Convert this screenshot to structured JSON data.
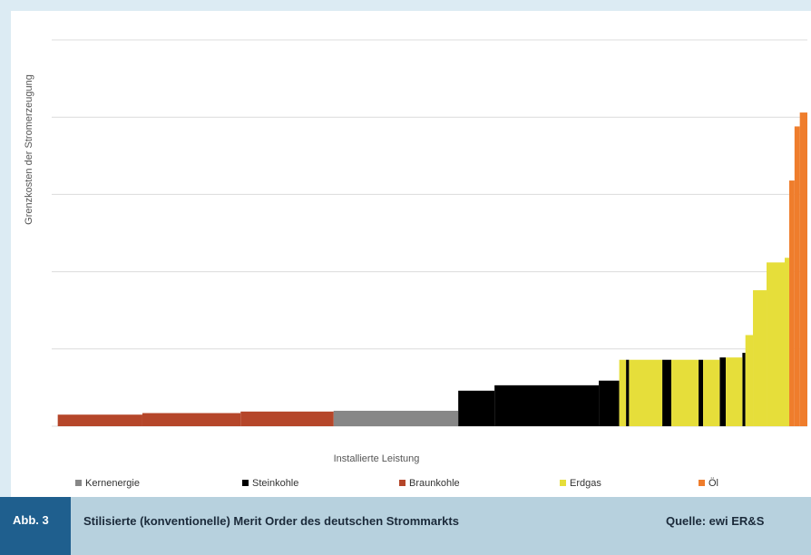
{
  "chart_data": {
    "type": "step-bar",
    "y_label": "Grenzkosten der Stromerzeugung",
    "x_label": "Installierte Leistung",
    "xlim": [
      0,
      100
    ],
    "ylim": [
      0,
      5
    ],
    "yticks": [
      0,
      1,
      2,
      3,
      4,
      5
    ],
    "grid": true,
    "series": [
      {
        "name": "Kernenergie",
        "color": "#878787",
        "x0": [
          37.3
        ],
        "x1": [
          53.8
        ],
        "values": [
          0.2
        ]
      },
      {
        "name": "Steinkohle",
        "color": "#000000",
        "x0": [
          53.8,
          58.6,
          72.4,
          76.0,
          80.8,
          85.6,
          88.4,
          91.4
        ],
        "x1": [
          58.6,
          72.4,
          75.1,
          76.4,
          82.0,
          86.2,
          89.2,
          91.8
        ],
        "values": [
          0.46,
          0.53,
          0.59,
          0.86,
          0.86,
          0.86,
          0.89,
          0.95
        ]
      },
      {
        "name": "Braunkohle",
        "color": "#b5462a",
        "x0": [
          0.8,
          12,
          25
        ],
        "x1": [
          12,
          25,
          37.3
        ],
        "values": [
          0.15,
          0.17,
          0.19
        ]
      },
      {
        "name": "Erdgas",
        "color": "#e6de3a",
        "x0": [
          75.1,
          76.4,
          82.0,
          86.2,
          89.2,
          91.8,
          92.8,
          94.6,
          97.0
        ],
        "x1": [
          76.0,
          80.8,
          85.6,
          88.4,
          91.4,
          92.8,
          94.6,
          97.0,
          97.6
        ],
        "values": [
          0.86,
          0.86,
          0.86,
          0.86,
          0.89,
          1.18,
          1.76,
          2.12,
          2.18
        ]
      },
      {
        "name": "Öl",
        "color": "#ef7d2c",
        "x0": [
          97.6,
          98.3,
          99.0
        ],
        "x1": [
          98.3,
          99.0,
          100
        ],
        "values": [
          3.18,
          3.88,
          4.06
        ]
      }
    ]
  },
  "caption": {
    "number": "Abb. 3",
    "title": "Stilisierte (konventionelle) Merit Order des deutschen Strommarkts",
    "source": "Quelle: ewi ER&S"
  }
}
